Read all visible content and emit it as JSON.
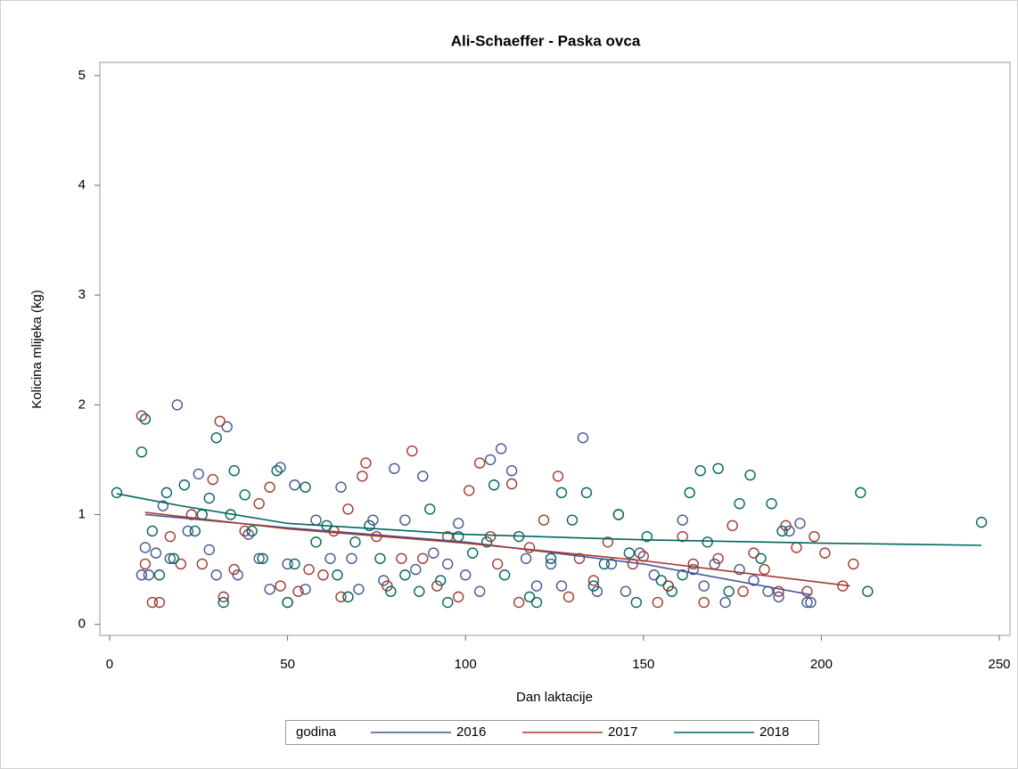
{
  "chart_data": {
    "type": "scatter",
    "title": "Ali-Schaeffer - Paska ovca",
    "x_label": "Dan laktacije",
    "y_label": "Kolicina mlijeka (kg)",
    "legend_title": "godina",
    "legend": "bottom",
    "xlim": [
      -2.75,
      253
    ],
    "ylim": [
      -0.1,
      5.12
    ],
    "xticks": [
      0,
      50,
      100,
      150,
      200,
      250
    ],
    "yticks": [
      0,
      1,
      2,
      3,
      4,
      5
    ],
    "series": [
      {
        "name": "2016",
        "color": "#445694",
        "x": [
          9,
          10,
          11,
          13,
          15,
          17,
          19,
          22,
          25,
          28,
          30,
          33,
          36,
          39,
          42,
          45,
          48,
          50,
          52,
          55,
          58,
          62,
          65,
          68,
          70,
          74,
          77,
          80,
          83,
          86,
          88,
          91,
          95,
          98,
          100,
          104,
          107,
          110,
          113,
          117,
          120,
          124,
          127,
          133,
          137,
          141,
          145,
          149,
          153,
          157,
          161,
          164,
          167,
          170,
          173,
          177,
          181,
          185,
          188,
          191,
          194,
          196,
          197
        ],
        "values": [
          0.45,
          0.7,
          0.45,
          0.65,
          1.08,
          0.6,
          2.0,
          0.85,
          1.37,
          0.68,
          0.45,
          1.8,
          0.45,
          0.82,
          0.6,
          0.32,
          1.43,
          0.55,
          1.27,
          0.32,
          0.95,
          0.6,
          1.25,
          0.6,
          0.32,
          0.95,
          0.4,
          1.42,
          0.95,
          0.5,
          1.35,
          0.65,
          0.55,
          0.92,
          0.45,
          0.3,
          1.5,
          1.6,
          1.4,
          0.6,
          0.35,
          0.55,
          0.35,
          1.7,
          0.3,
          0.55,
          0.3,
          0.65,
          0.45,
          0.35,
          0.95,
          0.5,
          0.35,
          0.55,
          0.2,
          0.5,
          0.4,
          0.3,
          0.25,
          0.85,
          0.92,
          0.2,
          0.2
        ],
        "fit": {
          "x": [
            10,
            50,
            100,
            150,
            197
          ],
          "values": [
            1.0,
            0.88,
            0.75,
            0.55,
            0.27
          ]
        }
      },
      {
        "name": "2017",
        "color": "#a23a2e",
        "x": [
          9,
          10,
          12,
          14,
          17,
          20,
          23,
          26,
          29,
          31,
          32,
          35,
          38,
          42,
          45,
          48,
          50,
          53,
          56,
          60,
          63,
          65,
          67,
          71,
          72,
          75,
          78,
          82,
          85,
          88,
          92,
          95,
          98,
          101,
          104,
          107,
          109,
          113,
          115,
          118,
          122,
          126,
          129,
          132,
          136,
          140,
          143,
          147,
          150,
          154,
          157,
          161,
          164,
          167,
          171,
          175,
          178,
          181,
          184,
          188,
          190,
          193,
          196,
          198,
          201,
          206,
          209
        ],
        "values": [
          1.9,
          0.55,
          0.2,
          0.2,
          0.8,
          0.55,
          1.0,
          0.55,
          1.32,
          1.85,
          0.25,
          0.5,
          0.85,
          1.1,
          1.25,
          0.35,
          0.2,
          0.3,
          0.5,
          0.45,
          0.85,
          0.25,
          1.05,
          1.35,
          1.47,
          0.8,
          0.35,
          0.6,
          1.58,
          0.6,
          0.35,
          0.8,
          0.25,
          1.22,
          1.47,
          0.8,
          0.55,
          1.28,
          0.2,
          0.7,
          0.95,
          1.35,
          0.25,
          0.6,
          0.4,
          0.75,
          1.0,
          0.55,
          0.62,
          0.2,
          0.35,
          0.8,
          0.55,
          0.2,
          0.6,
          0.9,
          0.3,
          0.65,
          0.5,
          0.3,
          0.9,
          0.7,
          0.3,
          0.8,
          0.65,
          0.35,
          0.55
        ],
        "fit": {
          "x": [
            10,
            50,
            100,
            150,
            208
          ],
          "values": [
            1.02,
            0.87,
            0.74,
            0.58,
            0.35
          ]
        }
      },
      {
        "name": "2018",
        "color": "#01665e",
        "x": [
          2,
          9,
          10,
          12,
          14,
          16,
          18,
          21,
          24,
          26,
          28,
          30,
          32,
          34,
          35,
          38,
          40,
          43,
          47,
          50,
          52,
          55,
          58,
          61,
          64,
          67,
          69,
          73,
          76,
          79,
          83,
          87,
          90,
          93,
          95,
          98,
          102,
          106,
          108,
          111,
          115,
          118,
          120,
          124,
          127,
          130,
          134,
          136,
          139,
          143,
          146,
          148,
          151,
          155,
          158,
          161,
          163,
          166,
          168,
          171,
          174,
          177,
          180,
          183,
          186,
          189,
          211,
          213,
          245
        ],
        "values": [
          1.2,
          1.57,
          1.87,
          0.85,
          0.45,
          1.2,
          0.6,
          1.27,
          0.85,
          1.0,
          1.15,
          1.7,
          0.2,
          1.0,
          1.4,
          1.18,
          0.85,
          0.6,
          1.4,
          0.2,
          0.55,
          1.25,
          0.75,
          0.9,
          0.45,
          0.25,
          0.75,
          0.9,
          0.6,
          0.3,
          0.45,
          0.3,
          1.05,
          0.4,
          0.2,
          0.8,
          0.65,
          0.75,
          1.27,
          0.45,
          0.8,
          0.25,
          0.2,
          0.6,
          1.2,
          0.95,
          1.2,
          0.35,
          0.55,
          1.0,
          0.65,
          0.2,
          0.8,
          0.4,
          0.3,
          0.45,
          1.2,
          1.4,
          0.75,
          1.42,
          0.3,
          1.1,
          1.36,
          0.6,
          1.1,
          0.85,
          1.2,
          0.3,
          0.93
        ],
        "fit": {
          "x": [
            2,
            20,
            50,
            100,
            150,
            200,
            245
          ],
          "values": [
            1.19,
            1.08,
            0.92,
            0.82,
            0.77,
            0.74,
            0.72
          ]
        }
      }
    ]
  }
}
